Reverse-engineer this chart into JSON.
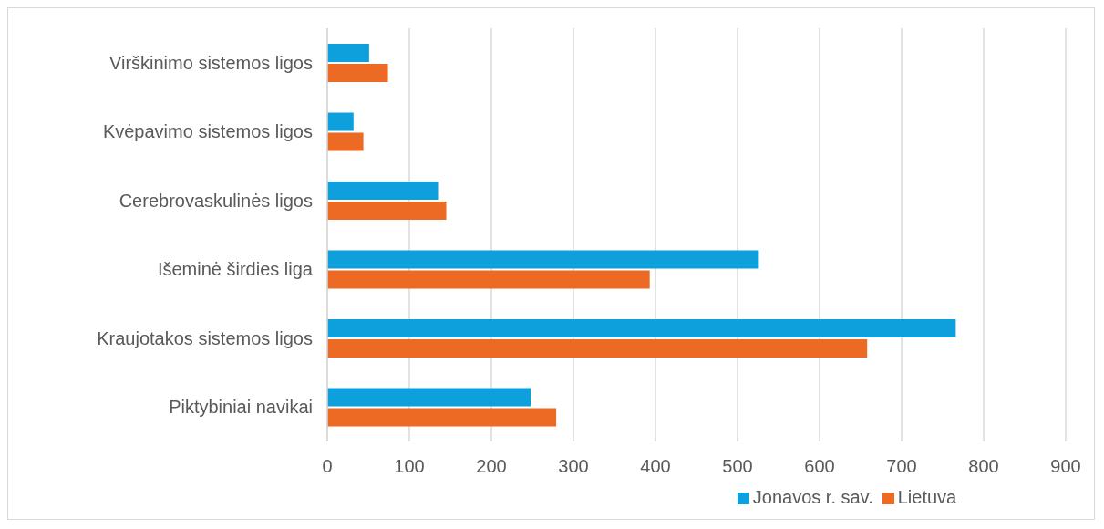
{
  "chart_data": {
    "type": "bar",
    "orientation": "horizontal",
    "categories": [
      "Virškinimo sistemos ligos",
      "Kvėpavimo sistemos ligos",
      "Cerebrovaskulinės ligos",
      "Išeminė širdies liga",
      "Kraujotakos sistemos ligos",
      "Piktybiniai navikai"
    ],
    "series": [
      {
        "name": "Jonavos r. sav.",
        "color": "#0ea0dc",
        "values": [
          51,
          32,
          135,
          526,
          766,
          248
        ]
      },
      {
        "name": "Lietuva",
        "color": "#ec6a24",
        "values": [
          74,
          44,
          145,
          393,
          658,
          279
        ]
      }
    ],
    "xlim": [
      0,
      900
    ],
    "xticks": [
      0,
      100,
      200,
      300,
      400,
      500,
      600,
      700,
      800,
      900
    ],
    "grid": "x",
    "legend": "bottom"
  }
}
